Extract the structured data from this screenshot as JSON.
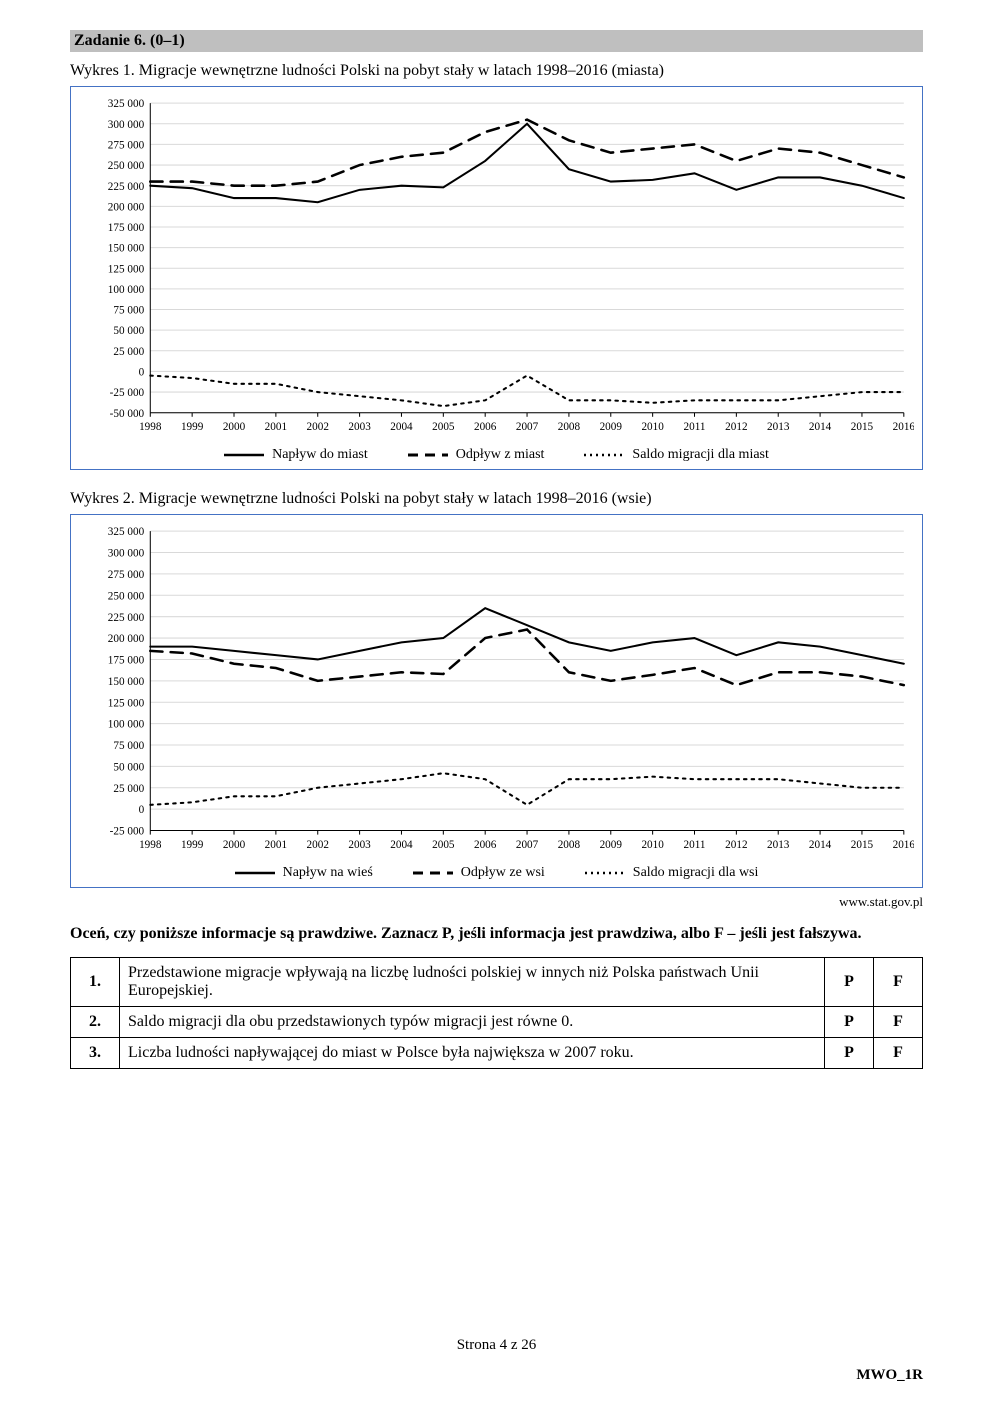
{
  "task_header": "Zadanie 6. (0–1)",
  "chart1": {
    "caption": "Wykres 1. Migracje wewnętrzne ludności Polski na pobyt stały w latach 1998–2016 (miasta)",
    "type": "line",
    "background_color": "#ffffff",
    "grid_color": "#d9d9d9",
    "border_color": "#4472c4",
    "years": [
      1998,
      1999,
      2000,
      2001,
      2002,
      2003,
      2004,
      2005,
      2006,
      2007,
      2008,
      2009,
      2010,
      2011,
      2012,
      2013,
      2014,
      2015,
      2016
    ],
    "ylim": [
      -50000,
      325000
    ],
    "ytick_step": 25000,
    "yticks": [
      "325 000",
      "300 000",
      "275 000",
      "250 000",
      "225 000",
      "200 000",
      "175 000",
      "150 000",
      "125 000",
      "100 000",
      "75 000",
      "50 000",
      "25 000",
      "0",
      "-25 000",
      "-50 000"
    ],
    "series": {
      "inflow": {
        "label": "Napływ do miast",
        "style": "solid",
        "color": "#000000",
        "width": 2,
        "values": [
          225000,
          222000,
          210000,
          210000,
          205000,
          220000,
          225000,
          223000,
          255000,
          300000,
          245000,
          230000,
          232000,
          240000,
          220000,
          235000,
          235000,
          225000,
          210000
        ]
      },
      "outflow": {
        "label": "Odpływ z miast",
        "style": "dash",
        "color": "#000000",
        "width": 2.5,
        "values": [
          230000,
          230000,
          225000,
          225000,
          230000,
          250000,
          260000,
          265000,
          290000,
          305000,
          280000,
          265000,
          270000,
          275000,
          255000,
          270000,
          265000,
          250000,
          235000
        ]
      },
      "balance": {
        "label": "Saldo migracji dla miast",
        "style": "dot",
        "color": "#000000",
        "width": 2,
        "values": [
          -5000,
          -8000,
          -15000,
          -15000,
          -25000,
          -30000,
          -35000,
          -42000,
          -35000,
          -5000,
          -35000,
          -35000,
          -38000,
          -35000,
          -35000,
          -35000,
          -30000,
          -25000,
          -25000
        ]
      }
    },
    "label_fontsize": 11
  },
  "chart2": {
    "caption": "Wykres 2. Migracje wewnętrzne ludności Polski na pobyt stały w latach 1998–2016 (wsie)",
    "type": "line",
    "background_color": "#ffffff",
    "grid_color": "#d9d9d9",
    "border_color": "#4472c4",
    "years": [
      1998,
      1999,
      2000,
      2001,
      2002,
      2003,
      2004,
      2005,
      2006,
      2007,
      2008,
      2009,
      2010,
      2011,
      2012,
      2013,
      2014,
      2015,
      2016
    ],
    "ylim": [
      -25000,
      325000
    ],
    "ytick_step": 25000,
    "yticks": [
      "325 000",
      "300 000",
      "275 000",
      "250 000",
      "225 000",
      "200 000",
      "175 000",
      "150 000",
      "125 000",
      "100 000",
      "75 000",
      "50 000",
      "25 000",
      "0",
      "-25 000"
    ],
    "series": {
      "inflow": {
        "label": "Napływ na wieś",
        "style": "solid",
        "color": "#000000",
        "width": 2,
        "values": [
          190000,
          190000,
          185000,
          180000,
          175000,
          185000,
          195000,
          200000,
          235000,
          215000,
          195000,
          185000,
          195000,
          200000,
          180000,
          195000,
          190000,
          180000,
          170000
        ]
      },
      "outflow": {
        "label": "Odpływ ze wsi",
        "style": "dash",
        "color": "#000000",
        "width": 2.5,
        "values": [
          185000,
          182000,
          170000,
          165000,
          150000,
          155000,
          160000,
          158000,
          200000,
          210000,
          160000,
          150000,
          157000,
          165000,
          145000,
          160000,
          160000,
          155000,
          145000
        ]
      },
      "balance": {
        "label": "Saldo migracji dla wsi",
        "style": "dot",
        "color": "#000000",
        "width": 2,
        "values": [
          5000,
          8000,
          15000,
          15000,
          25000,
          30000,
          35000,
          42000,
          35000,
          5000,
          35000,
          35000,
          38000,
          35000,
          35000,
          35000,
          30000,
          25000,
          25000
        ]
      }
    },
    "label_fontsize": 11
  },
  "source": "www.stat.gov.pl",
  "instruction": "Oceń, czy poniższe informacje są prawdziwe. Zaznacz P, jeśli informacja jest prawdziwa, albo F – jeśli jest fałszywa.",
  "table": {
    "rows": [
      {
        "num": "1.",
        "text": "Przedstawione migracje wpływają na liczbę ludności polskiej w innych niż Polska państwach Unii Europejskiej.",
        "p": "P",
        "f": "F"
      },
      {
        "num": "2.",
        "text": "Saldo migracji dla obu przedstawionych typów migracji jest równe 0.",
        "p": "P",
        "f": "F"
      },
      {
        "num": "3.",
        "text": "Liczba ludności napływającej do miast w Polsce była największa w 2007 roku.",
        "p": "P",
        "f": "F"
      }
    ]
  },
  "page_footer": "Strona 4 z 26",
  "doc_code": "MWO_1R"
}
